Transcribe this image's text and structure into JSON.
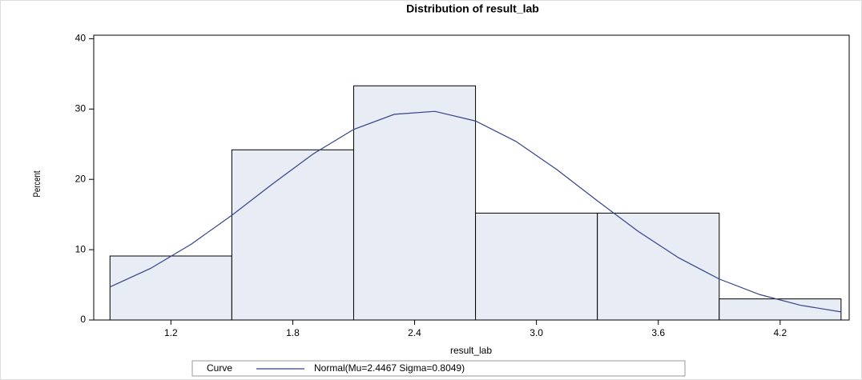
{
  "chart_data": {
    "type": "histogram",
    "title": "Distribution of result_lab",
    "x_label": "result_lab",
    "y_label": "Percent",
    "bins": [
      0.9,
      1.5,
      2.1,
      2.7,
      3.3,
      3.9,
      4.5
    ],
    "values": [
      9.1,
      24.2,
      33.3,
      15.2,
      15.2,
      3.0
    ],
    "color": "#e8ecf5",
    "edge_color": "#000000",
    "xlim": [
      0.82,
      4.54
    ],
    "ylim": [
      0,
      40.5
    ],
    "xticks": [
      1.2,
      1.8,
      2.4,
      {
        "value": 3,
        "label": "3.0"
      },
      3.6,
      4.2
    ],
    "yticks": [
      0,
      10,
      20,
      30,
      40
    ],
    "legend_title": "Curve",
    "series": [
      {
        "name": "Normal(Mu=2.4467 Sigma=0.8049)",
        "color": "#34438a",
        "x": [
          0.9,
          1.1,
          1.3,
          1.5,
          1.7,
          1.9,
          2.1,
          2.3,
          2.5,
          2.7,
          2.9,
          3.1,
          3.3,
          3.5,
          3.7,
          3.9,
          4.1,
          4.3,
          4.5
        ],
        "values": [
          4.7,
          7.34,
          10.78,
          14.89,
          19.34,
          23.61,
          27.1,
          29.25,
          29.67,
          28.3,
          25.38,
          21.4,
          16.95,
          12.63,
          8.85,
          5.83,
          3.61,
          2.1,
          1.15
        ]
      }
    ]
  }
}
